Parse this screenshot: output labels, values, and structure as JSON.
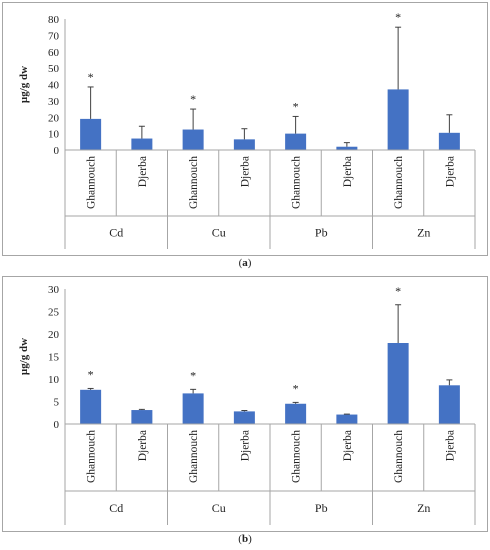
{
  "captions": {
    "a_open": "(",
    "a_letter": "a",
    "a_close": ")",
    "b_open": "(",
    "b_letter": "b",
    "b_close": ")"
  },
  "colors": {
    "bar": "#4472c4",
    "axis": "#a6a6a6",
    "text": "#222222"
  },
  "chart_data": [
    {
      "type": "bar",
      "title": "",
      "ylabel": "µg/g dw",
      "ylim": [
        0,
        80
      ],
      "yticks": [
        0,
        10,
        20,
        30,
        40,
        50,
        60,
        70,
        80
      ],
      "groups": [
        "Cd",
        "Cu",
        "Pb",
        "Zn"
      ],
      "categories": [
        "Ghannouch",
        "Djerba",
        "Ghannouch",
        "Djerba",
        "Ghannouch",
        "Djerba",
        "Ghannouch",
        "Djerba"
      ],
      "values": [
        19,
        7,
        12.5,
        6.5,
        10,
        2,
        37,
        10.5
      ],
      "errors": [
        19.5,
        7.5,
        12.5,
        6.5,
        10.5,
        2.5,
        38,
        11
      ],
      "significance": [
        "*",
        "",
        "*",
        "",
        "*",
        "",
        "*",
        ""
      ],
      "grid": false,
      "legend": "none"
    },
    {
      "type": "bar",
      "title": "",
      "ylabel": "µg/g dw",
      "ylim": [
        0,
        30
      ],
      "yticks": [
        0,
        5,
        10,
        15,
        20,
        25,
        30
      ],
      "groups": [
        "Cd",
        "Cu",
        "Pb",
        "Zn"
      ],
      "categories": [
        "Ghannouch",
        "Djerba",
        "Ghannouch",
        "Djerba",
        "Ghannouch",
        "Djerba",
        "Ghannouch",
        "Djerba"
      ],
      "values": [
        7.6,
        3.1,
        6.8,
        2.8,
        4.5,
        2.1,
        18,
        8.6
      ],
      "errors": [
        0.3,
        0.15,
        0.9,
        0.2,
        0.3,
        0.1,
        8.5,
        1.2
      ],
      "significance": [
        "*",
        "",
        "*",
        "",
        "*",
        "",
        "*",
        ""
      ],
      "grid": false,
      "legend": "none"
    }
  ]
}
